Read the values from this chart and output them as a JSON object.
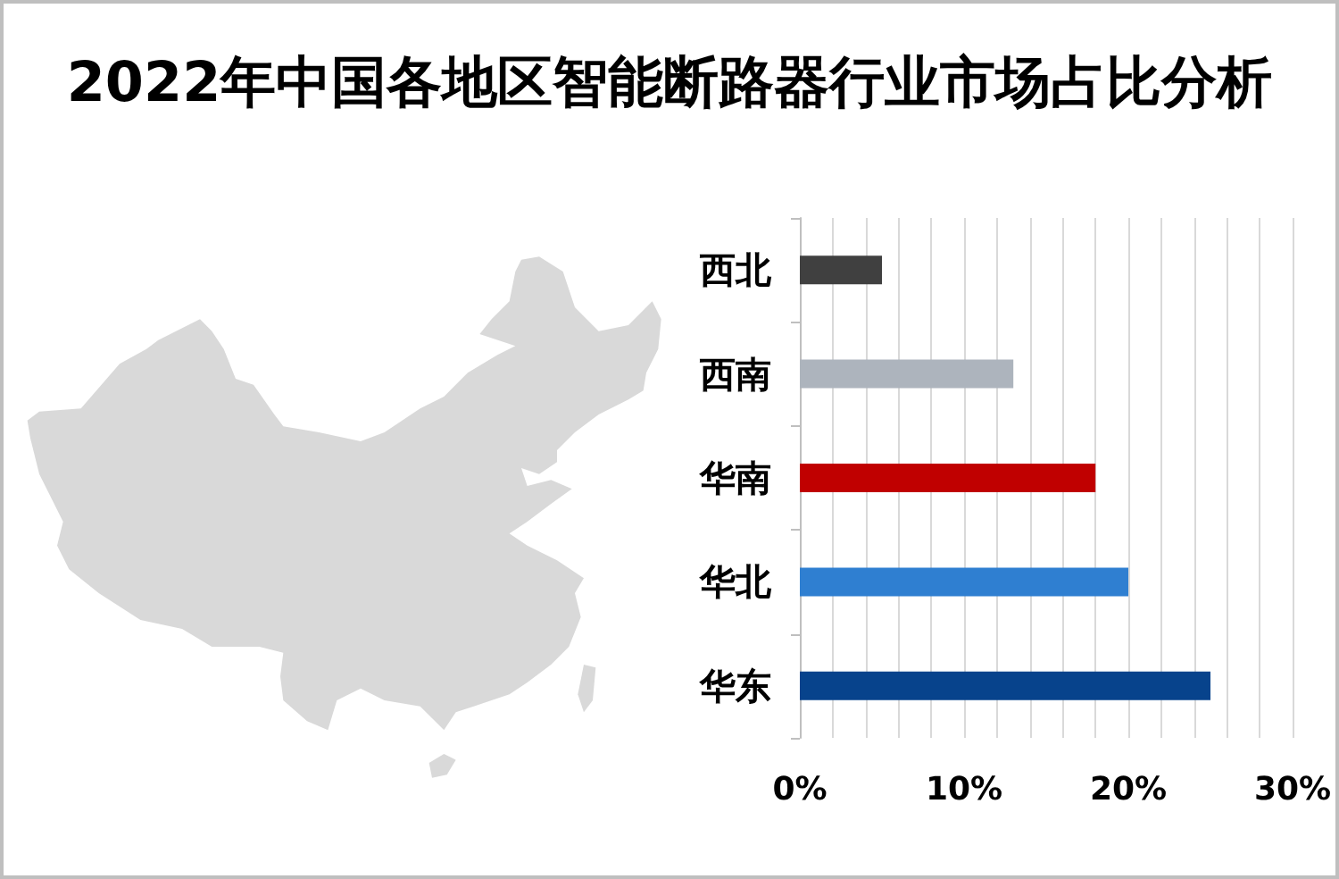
{
  "chart_data": {
    "type": "bar",
    "orientation": "horizontal",
    "title": "2022年中国各地区智能断路器行业市场占比分析",
    "categories": [
      "西北",
      "西南",
      "华南",
      "华北",
      "华东"
    ],
    "values": [
      5,
      13,
      18,
      20,
      25
    ],
    "colors": [
      "#404040",
      "#adb4bd",
      "#c00000",
      "#2f7fd1",
      "#07438c"
    ],
    "xlim": [
      0,
      30
    ],
    "xticks": [
      {
        "value": 0,
        "label": "0%"
      },
      {
        "value": 2,
        "label": null
      },
      {
        "value": 4,
        "label": null
      },
      {
        "value": 6,
        "label": null
      },
      {
        "value": 8,
        "label": null
      },
      {
        "value": 10,
        "label": "10%"
      },
      {
        "value": 12,
        "label": null
      },
      {
        "value": 14,
        "label": null
      },
      {
        "value": 16,
        "label": null
      },
      {
        "value": 18,
        "label": null
      },
      {
        "value": 20,
        "label": "20%"
      },
      {
        "value": 22,
        "label": null
      },
      {
        "value": 24,
        "label": null
      },
      {
        "value": 26,
        "label": null
      },
      {
        "value": 28,
        "label": null
      },
      {
        "value": 30,
        "label": "30%"
      }
    ],
    "grid": "x"
  }
}
